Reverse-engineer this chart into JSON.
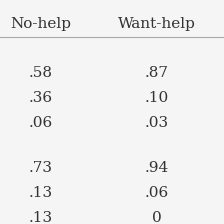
{
  "col1_header": "No-help",
  "col2_header": "Want-help",
  "group1": [
    [
      ".58",
      ".87"
    ],
    [
      ".36",
      ".10"
    ],
    [
      ".06",
      ".03"
    ]
  ],
  "group2": [
    [
      ".73",
      ".94"
    ],
    [
      ".13",
      ".06"
    ],
    [
      ".13",
      "0"
    ]
  ],
  "bg_color": "#f5f5f5",
  "text_color": "#333333",
  "header_line_color": "#aaaaaa",
  "font_size": 11,
  "header_font_size": 11
}
